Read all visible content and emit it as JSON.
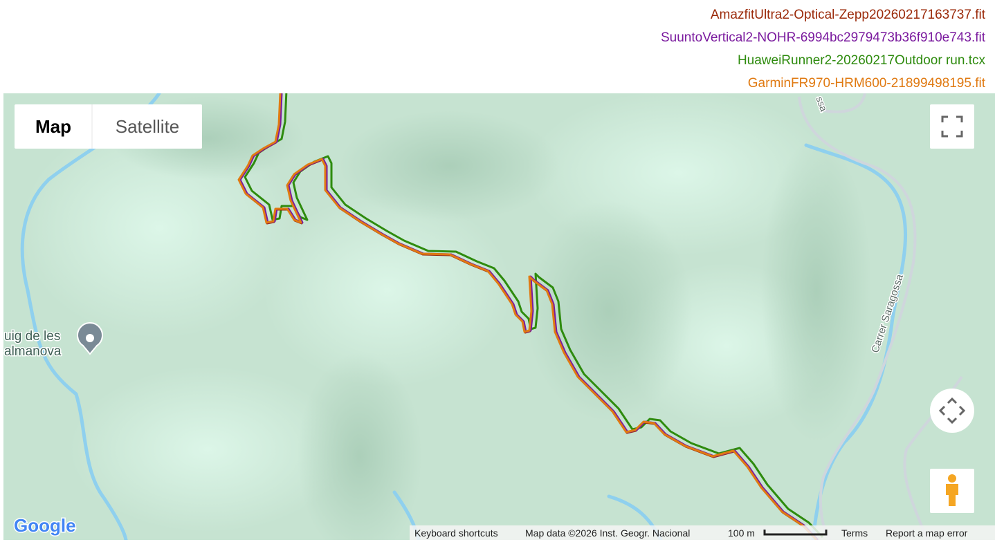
{
  "legend": [
    {
      "name": "AmazfitUltra2-Optical-Zepp20260217163737.fit",
      "color": "#9b2a0a"
    },
    {
      "name": "SuuntoVertical2-NOHR-6994bc2979473b36f910e743.fit",
      "color": "#7a1a9e"
    },
    {
      "name": "HuaweiRunner2-20260217Outdoor run.tcx",
      "color": "#2e8b0e"
    },
    {
      "name": "GarminFR970-HRM600-21899498195.fit",
      "color": "#e07a12"
    }
  ],
  "map_type_control": {
    "map": "Map",
    "satellite": "Satellite"
  },
  "map_labels": {
    "place_line1": "uig de les",
    "place_line2": "almanova",
    "street": "Carrer Saragossa",
    "street_top": "ssa"
  },
  "attribution": {
    "logo": "Google",
    "keyboard_shortcuts": "Keyboard shortcuts",
    "map_data": "Map data ©2026 Inst. Geogr. Nacional",
    "scale": "100 m",
    "terms": "Terms",
    "report": "Report a map error"
  }
}
